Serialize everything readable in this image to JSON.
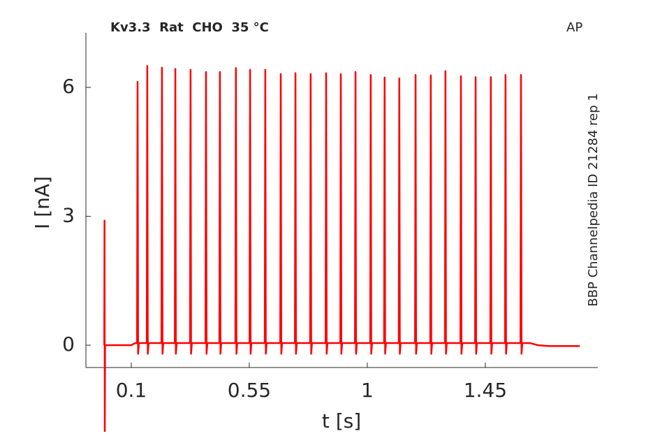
{
  "chart_data": {
    "type": "line",
    "title": "Kv3.3  Rat  CHO  35 °C",
    "corner_label": "AP",
    "side_label": "BBP Channelpedia ID 21284 rep 1",
    "xlabel": "t [s]",
    "ylabel": "I [nA]",
    "color": "#ff0000",
    "xlim": [
      -0.073,
      1.879
    ],
    "ylim": [
      -0.52,
      7.27
    ],
    "xticks": [
      0.1,
      0.55,
      1,
      1.45
    ],
    "yticks": [
      0,
      3,
      6
    ],
    "x": [
      -0.003,
      -0.002,
      -0.001,
      0,
      0.1,
      0.115,
      0.122,
      0.124,
      0.126,
      0.129,
      0.159,
      0.161,
      0.163,
      0.166,
      0.215,
      0.217,
      0.219,
      0.222,
      0.266,
      0.268,
      0.27,
      0.273,
      0.324,
      0.326,
      0.328,
      0.331,
      0.383,
      0.385,
      0.387,
      0.39,
      0.436,
      0.438,
      0.44,
      0.443,
      0.497,
      0.499,
      0.501,
      0.504,
      0.551,
      0.553,
      0.555,
      0.558,
      0.609,
      0.611,
      0.613,
      0.616,
      0.668,
      0.67,
      0.672,
      0.675,
      0.724,
      0.726,
      0.728,
      0.731,
      0.782,
      0.784,
      0.786,
      0.789,
      0.841,
      0.843,
      0.845,
      0.848,
      0.897,
      0.899,
      0.901,
      0.904,
      0.953,
      0.955,
      0.957,
      0.96,
      1.011,
      1.013,
      1.015,
      1.018,
      1.064,
      1.066,
      1.068,
      1.071,
      1.12,
      1.122,
      1.124,
      1.127,
      1.182,
      1.184,
      1.186,
      1.189,
      1.24,
      1.242,
      1.244,
      1.247,
      1.296,
      1.298,
      1.3,
      1.303,
      1.355,
      1.357,
      1.359,
      1.362,
      1.411,
      1.413,
      1.415,
      1.418,
      1.469,
      1.471,
      1.473,
      1.476,
      1.525,
      1.527,
      1.529,
      1.532,
      1.584,
      1.586,
      1.588,
      1.591,
      1.62,
      1.65,
      1.69,
      1.81
    ],
    "values": [
      0,
      2.9,
      -2.0,
      0,
      0,
      0.05,
      0.05,
      6.13,
      -0.2,
      0.05,
      0.05,
      6.5,
      -0.2,
      0.05,
      0.05,
      6.46,
      -0.2,
      0.05,
      0.05,
      6.43,
      -0.2,
      0.05,
      0.05,
      6.41,
      -0.2,
      0.05,
      0.05,
      6.36,
      -0.2,
      0.05,
      0.05,
      6.36,
      -0.2,
      0.05,
      0.05,
      6.45,
      -0.2,
      0.05,
      0.05,
      6.41,
      -0.2,
      0.05,
      0.05,
      6.41,
      -0.2,
      0.05,
      0.05,
      6.31,
      -0.2,
      0.05,
      0.05,
      6.33,
      -0.2,
      0.05,
      0.05,
      6.31,
      -0.2,
      0.05,
      0.05,
      6.33,
      -0.2,
      0.05,
      0.05,
      6.31,
      -0.2,
      0.05,
      0.05,
      6.36,
      -0.2,
      0.05,
      0.05,
      6.29,
      -0.2,
      0.05,
      0.05,
      6.23,
      -0.2,
      0.05,
      0.05,
      6.21,
      -0.2,
      0.05,
      0.05,
      6.29,
      -0.2,
      0.05,
      0.05,
      6.28,
      -0.2,
      0.05,
      0.05,
      6.38,
      -0.2,
      0.05,
      0.05,
      6.26,
      -0.2,
      0.05,
      0.05,
      6.24,
      -0.2,
      0.05,
      0.05,
      6.24,
      -0.2,
      0.05,
      0.05,
      6.29,
      -0.2,
      0.05,
      0.05,
      6.29,
      -0.2,
      0.05,
      0.05,
      0,
      -0.02,
      -0.02
    ]
  }
}
